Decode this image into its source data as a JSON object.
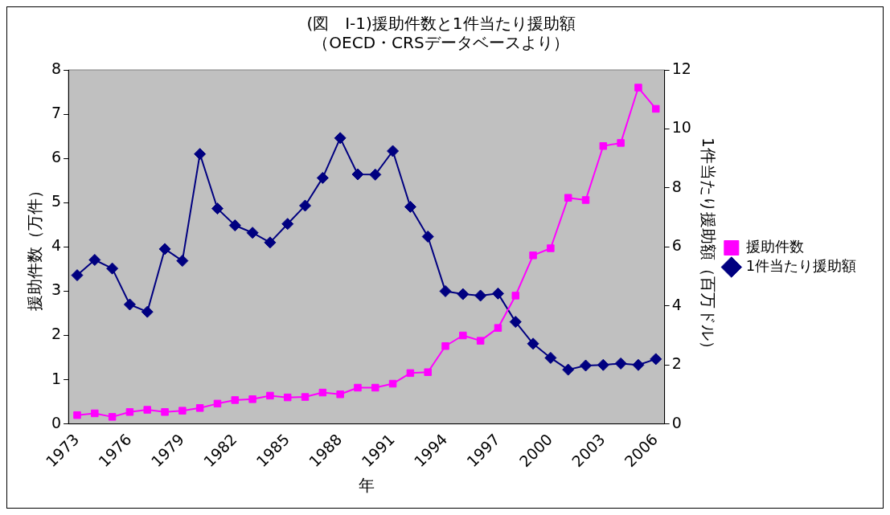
{
  "chart_data": {
    "type": "line",
    "title": [
      "(図　I-1)援助件数と1件当たり援助額",
      "（OECD・CRSデータベースより）"
    ],
    "xlabel": "年",
    "ylabel": "援助件数（万件）",
    "y2label": "1件当たり援助額（百万ドル）",
    "categories": [
      "1973",
      null,
      null,
      "1976",
      null,
      null,
      "1979",
      null,
      null,
      "1982",
      null,
      null,
      "1985",
      null,
      null,
      "1988",
      null,
      null,
      "1991",
      null,
      null,
      "1994",
      null,
      null,
      "1997",
      null,
      null,
      "2000",
      null,
      null,
      "2003",
      null,
      null,
      "2006"
    ],
    "series": [
      {
        "name": "援助件数",
        "color": "#ff00ff",
        "marker": "square",
        "values": [
          0.2,
          0.24,
          0.16,
          0.27,
          0.32,
          0.27,
          0.3,
          0.36,
          0.46,
          0.54,
          0.56,
          0.64,
          0.6,
          0.61,
          0.71,
          0.67,
          0.82,
          0.82,
          0.91,
          1.15,
          1.17,
          1.76,
          2.0,
          1.88,
          2.17,
          2.9,
          3.81,
          3.97,
          5.11,
          5.06,
          6.28,
          6.35,
          7.6,
          7.12
        ]
      },
      {
        "name": "1件当たり援助額",
        "color": "#000080",
        "marker": "diamond",
        "axis": "y2",
        "values": [
          5.04,
          5.56,
          5.27,
          4.05,
          3.8,
          5.93,
          5.53,
          9.15,
          7.3,
          6.73,
          6.48,
          6.15,
          6.78,
          7.4,
          8.34,
          9.69,
          8.46,
          8.45,
          9.25,
          7.36,
          6.35,
          4.5,
          4.4,
          4.35,
          4.42,
          3.46,
          2.72,
          2.24,
          1.84,
          1.98,
          2.0,
          2.05,
          2.0,
          2.2
        ]
      }
    ],
    "ylim": [
      0,
      8
    ],
    "yticks": [
      0,
      1,
      2,
      3,
      4,
      5,
      6,
      7,
      8
    ],
    "y2lim": [
      0,
      12
    ],
    "y2ticks": [
      0,
      2,
      4,
      6,
      8,
      10,
      12
    ],
    "grid": false,
    "legend": "right"
  }
}
